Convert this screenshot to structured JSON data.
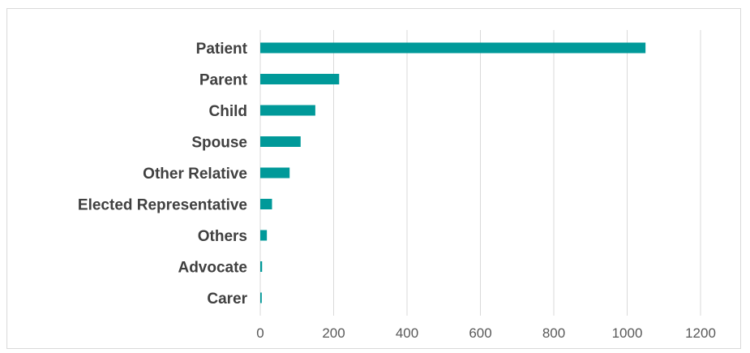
{
  "chart_data": {
    "type": "bar",
    "orientation": "horizontal",
    "categories": [
      "Patient",
      "Parent",
      "Child",
      "Spouse",
      "Other Relative",
      "Elected Representative",
      "Others",
      "Advocate",
      "Carer"
    ],
    "values": [
      1050,
      215,
      150,
      110,
      80,
      32,
      18,
      5,
      4
    ],
    "xlim": [
      0,
      1200
    ],
    "x_ticks": [
      0,
      200,
      400,
      600,
      800,
      1000,
      1200
    ],
    "title": "",
    "xlabel": "",
    "ylabel": "",
    "grid": true,
    "legend": "none",
    "bar_color": "#009999"
  }
}
